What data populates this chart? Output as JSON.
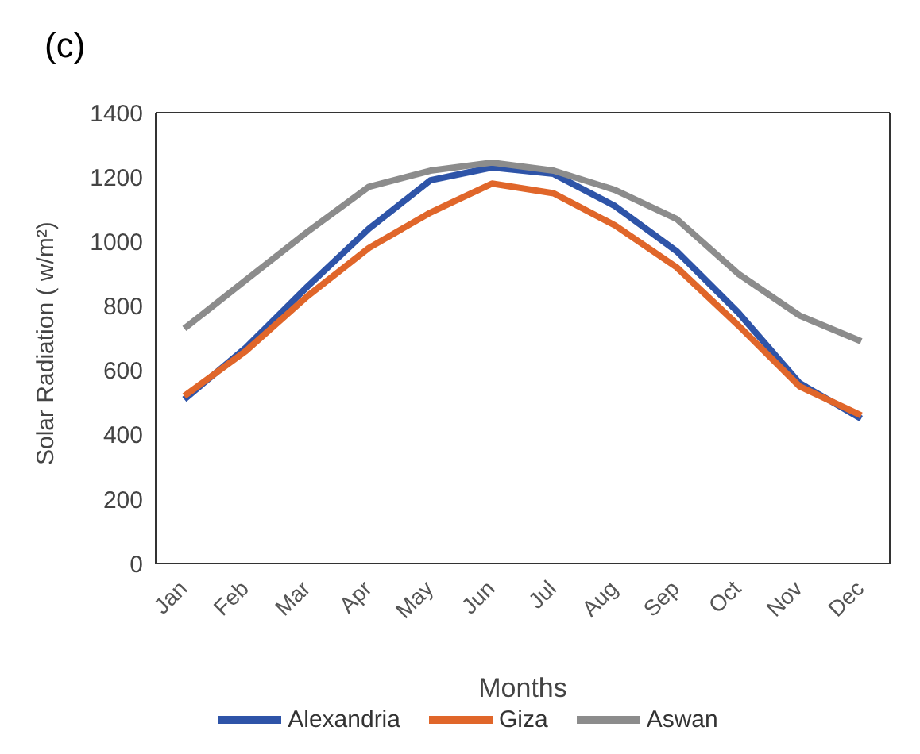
{
  "chart_data": {
    "type": "line",
    "title": "(c)",
    "xlabel": "Months",
    "ylabel": "Solar Radiation ( w/m²)",
    "categories": [
      "Jan",
      "Feb",
      "Mar",
      "Apr",
      "May",
      "Jun",
      "Jul",
      "Aug",
      "Sep",
      "Oct",
      "Nov",
      "Dec"
    ],
    "series": [
      {
        "name": "Alexandria",
        "color": "#2e54a8",
        "values": [
          510,
          670,
          860,
          1040,
          1190,
          1230,
          1210,
          1110,
          970,
          780,
          560,
          450
        ]
      },
      {
        "name": "Giza",
        "color": "#e0662a",
        "values": [
          520,
          660,
          830,
          980,
          1090,
          1180,
          1150,
          1050,
          920,
          740,
          550,
          460
        ]
      },
      {
        "name": "Aswan",
        "color": "#8c8c8c",
        "values": [
          730,
          880,
          1030,
          1170,
          1220,
          1245,
          1220,
          1160,
          1070,
          900,
          770,
          690
        ]
      }
    ],
    "ylim": [
      0,
      1400
    ],
    "yticks": [
      0,
      200,
      400,
      600,
      800,
      1000,
      1200,
      1400
    ],
    "grid": false,
    "legend": "bottom",
    "marker": "none",
    "line_style": "solid"
  }
}
